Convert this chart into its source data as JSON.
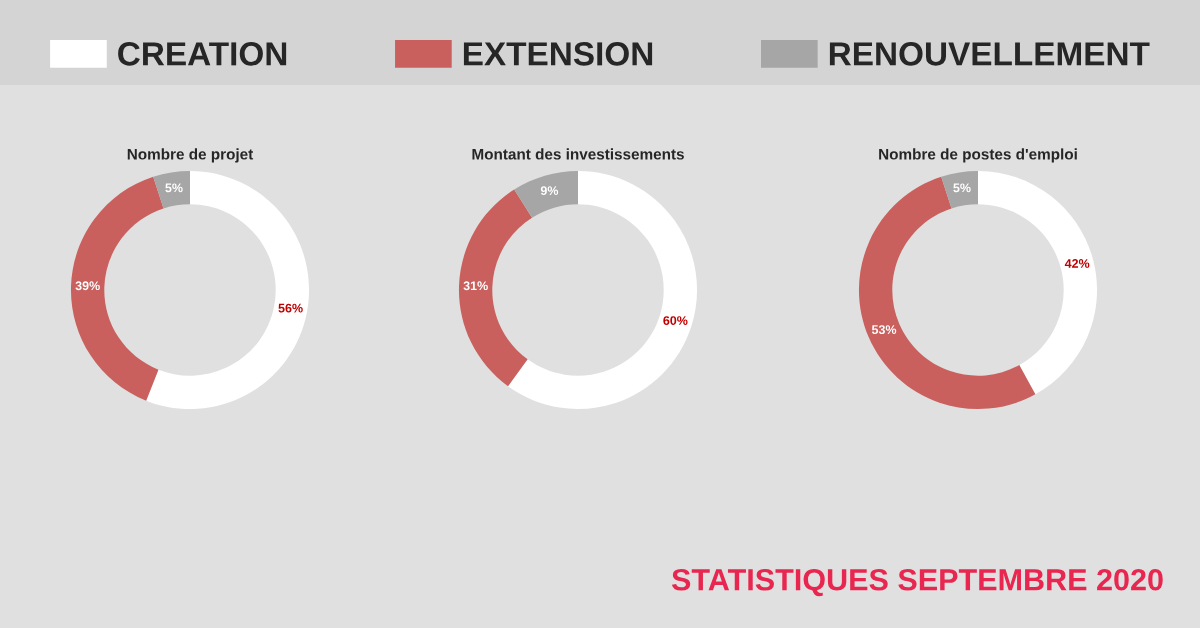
{
  "chart_data": [
    {
      "type": "donut",
      "title": "Nombre de projet",
      "categories": [
        "CREATION",
        "EXTENSION",
        "RENOUVELLEMENT"
      ],
      "values": [
        56,
        39,
        5
      ],
      "colors": [
        "#ffffff",
        "#c9605e",
        "#a6a6a6"
      ],
      "value_labels": [
        "56%",
        "39%",
        "5%"
      ],
      "legend": "top"
    },
    {
      "type": "donut",
      "title": "Montant des investissements",
      "categories": [
        null,
        null,
        null
      ],
      "values": [
        60,
        31,
        9
      ],
      "colors": [
        "#ffffff",
        "#c9605e",
        "#a6a6a6"
      ],
      "value_labels": [
        "60%",
        "31%",
        "9%"
      ]
    },
    {
      "type": "donut",
      "title": "Nombre de postes d'emploi",
      "categories": [
        null,
        null,
        null
      ],
      "values": [
        42,
        53,
        5
      ],
      "colors": [
        "#ffffff",
        "#c9605e",
        "#a6a6a6"
      ],
      "value_labels": [
        "42%",
        "53%",
        "5%"
      ],
      "annotations": [
        "STATISTIQUES SEPTEMBRE 2020"
      ]
    }
  ]
}
